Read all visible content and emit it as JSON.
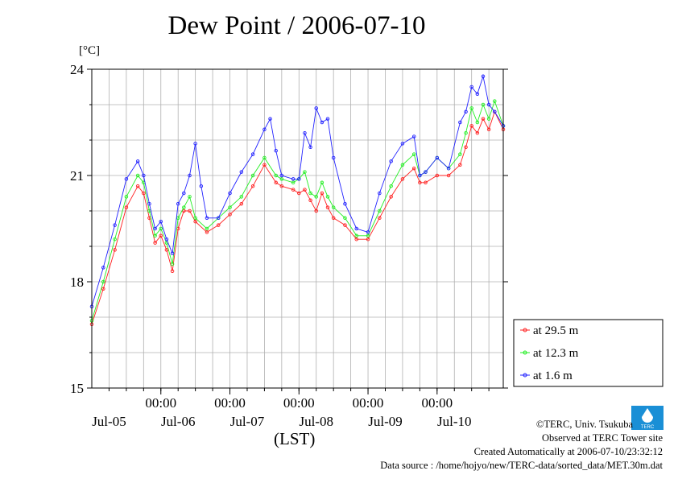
{
  "colors": {
    "s1": "#ff2020",
    "s2": "#22ee22",
    "s3": "#2222ff",
    "logo": "#1a8fd6"
  },
  "credits": {
    "line1": "©TERC, Univ. Tsukuba",
    "line2": "Observed at TERC Tower site",
    "line3": "Created Automatically at 2006-07-10/23:32:12",
    "line4": "Data source : /home/hojyo/new/TERC-data/sorted_data/MET.30m.dat"
  },
  "logo_text": "TERC",
  "chart_data": {
    "type": "line",
    "title": "Dew Point / 2006-07-10",
    "ylabel": "[°C]",
    "xlabel": "(LST)",
    "ylim": [
      15,
      24
    ],
    "yticks": [
      "15",
      "18",
      "21",
      "24"
    ],
    "xlim": [
      0,
      143
    ],
    "x_major_ticks": [
      "00:00",
      "00:00",
      "00:00",
      "00:00",
      "00:00"
    ],
    "x_major_positions": [
      24,
      48,
      72,
      96,
      120
    ],
    "date_labels": [
      "Jul-05",
      "Jul-06",
      "Jul-07",
      "Jul-08",
      "Jul-09",
      "Jul-10"
    ],
    "grid": true,
    "legend_position": "right-bottom",
    "x_unit": "hours since 2006-07-04 18:00 LST",
    "series": [
      {
        "name": "at 29.5 m",
        "color": "#ff2020",
        "x": [
          0,
          4,
          8,
          12,
          16,
          18,
          20,
          22,
          24,
          26,
          28,
          30,
          32,
          34,
          36,
          40,
          44,
          48,
          52,
          56,
          60,
          64,
          66,
          70,
          72,
          74,
          76,
          78,
          80,
          82,
          84,
          88,
          92,
          96,
          100,
          104,
          108,
          112,
          114,
          116,
          120,
          124,
          128,
          130,
          132,
          134,
          136,
          138,
          140,
          143
        ],
        "y": [
          16.8,
          17.8,
          18.9,
          20.1,
          20.7,
          20.5,
          19.8,
          19.1,
          19.3,
          18.9,
          18.3,
          19.5,
          20.0,
          20.0,
          19.7,
          19.4,
          19.6,
          19.9,
          20.2,
          20.7,
          21.3,
          20.8,
          20.7,
          20.6,
          20.5,
          20.6,
          20.3,
          20.0,
          20.5,
          20.1,
          19.8,
          19.6,
          19.2,
          19.2,
          19.8,
          20.4,
          20.9,
          21.2,
          20.8,
          20.8,
          21.0,
          21.0,
          21.3,
          21.8,
          22.4,
          22.2,
          22.6,
          22.3,
          22.8,
          22.3
        ]
      },
      {
        "name": "at 12.3 m",
        "color": "#22ee22",
        "x": [
          0,
          4,
          8,
          12,
          16,
          18,
          20,
          22,
          24,
          26,
          28,
          30,
          32,
          34,
          36,
          40,
          44,
          48,
          52,
          56,
          60,
          64,
          66,
          70,
          72,
          74,
          76,
          78,
          80,
          82,
          84,
          88,
          92,
          96,
          100,
          104,
          108,
          112,
          114,
          116,
          120,
          124,
          128,
          130,
          132,
          134,
          136,
          138,
          140,
          143
        ],
        "y": [
          16.9,
          18.0,
          19.2,
          20.4,
          21.0,
          20.8,
          20.0,
          19.3,
          19.5,
          19.1,
          18.5,
          19.8,
          20.1,
          20.4,
          19.8,
          19.5,
          19.8,
          20.1,
          20.4,
          21.0,
          21.5,
          21.0,
          20.9,
          20.8,
          20.9,
          21.1,
          20.5,
          20.4,
          20.8,
          20.4,
          20.1,
          19.8,
          19.3,
          19.3,
          20.0,
          20.7,
          21.3,
          21.6,
          21.0,
          21.1,
          21.5,
          21.2,
          21.6,
          22.2,
          22.9,
          22.5,
          23.0,
          22.6,
          23.1,
          22.4
        ]
      },
      {
        "name": "at 1.6 m",
        "color": "#2222ff",
        "x": [
          0,
          4,
          8,
          12,
          16,
          18,
          20,
          22,
          24,
          26,
          28,
          30,
          32,
          34,
          36,
          38,
          40,
          44,
          48,
          52,
          56,
          60,
          62,
          64,
          66,
          70,
          72,
          74,
          76,
          78,
          80,
          82,
          84,
          88,
          92,
          96,
          100,
          104,
          108,
          112,
          114,
          116,
          120,
          124,
          128,
          130,
          132,
          134,
          136,
          138,
          140,
          143
        ],
        "y": [
          17.3,
          18.4,
          19.6,
          20.9,
          21.4,
          21.0,
          20.2,
          19.5,
          19.7,
          19.2,
          18.8,
          20.2,
          20.5,
          21.0,
          21.9,
          20.7,
          19.8,
          19.8,
          20.5,
          21.1,
          21.6,
          22.3,
          22.6,
          21.7,
          21.0,
          20.9,
          20.9,
          22.2,
          21.8,
          22.9,
          22.5,
          22.6,
          21.5,
          20.2,
          19.5,
          19.4,
          20.5,
          21.4,
          21.9,
          22.1,
          21.0,
          21.1,
          21.5,
          21.2,
          22.5,
          22.8,
          23.5,
          23.3,
          23.8,
          23.0,
          22.8,
          22.4
        ]
      }
    ]
  }
}
